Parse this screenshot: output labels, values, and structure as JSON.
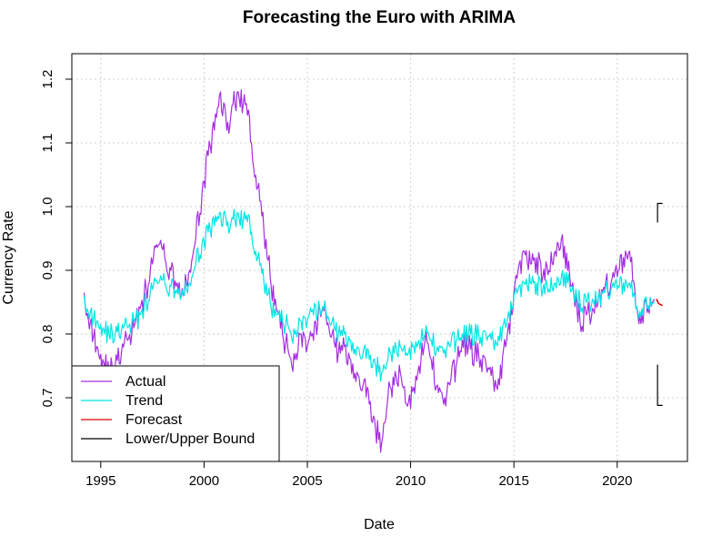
{
  "chart_data": {
    "type": "line",
    "title": "Forecasting the Euro with ARIMA",
    "xlabel": "Date",
    "ylabel": "Currency Rate",
    "xlim": [
      1993.6,
      2023.4
    ],
    "ylim": [
      0.6,
      1.24
    ],
    "x_ticks": [
      1995,
      2000,
      2005,
      2010,
      2015,
      2020
    ],
    "x_tick_labels": [
      "1995",
      "2000",
      "2005",
      "2010",
      "2015",
      "2020"
    ],
    "y_ticks": [
      0.7,
      0.8,
      0.9,
      1.0,
      1.1,
      1.2
    ],
    "y_tick_labels": [
      "0.7",
      "0.8",
      "0.9",
      "1.0",
      "1.1",
      "1.2"
    ],
    "grid": true,
    "legend_position": "bottom-left",
    "series": [
      {
        "name": "Actual",
        "color": "#a52ee0",
        "x": [
          1994.2,
          1994.5,
          1994.8,
          1995.1,
          1995.4,
          1995.7,
          1996.0,
          1996.3,
          1996.6,
          1996.9,
          1997.2,
          1997.5,
          1997.8,
          1998.1,
          1998.4,
          1998.7,
          1999.0,
          1999.3,
          1999.6,
          1999.9,
          2000.2,
          2000.5,
          2000.8,
          2001.1,
          2001.4,
          2001.7,
          2002.0,
          2002.3,
          2002.6,
          2002.9,
          2003.2,
          2003.5,
          2003.8,
          2004.1,
          2004.4,
          2004.7,
          2005.0,
          2005.3,
          2005.6,
          2005.9,
          2006.2,
          2006.5,
          2006.8,
          2007.1,
          2007.4,
          2007.7,
          2008.0,
          2008.3,
          2008.6,
          2008.9,
          2009.2,
          2009.5,
          2009.8,
          2010.1,
          2010.4,
          2010.7,
          2011.0,
          2011.3,
          2011.6,
          2011.9,
          2012.2,
          2012.5,
          2012.8,
          2013.1,
          2013.4,
          2013.7,
          2014.0,
          2014.3,
          2014.6,
          2014.9,
          2015.2,
          2015.5,
          2015.8,
          2016.1,
          2016.4,
          2016.7,
          2017.0,
          2017.3,
          2017.6,
          2017.9,
          2018.2,
          2018.5,
          2018.8,
          2019.1,
          2019.4,
          2019.7,
          2020.0,
          2020.3,
          2020.6,
          2020.9,
          2021.2,
          2021.5,
          2021.8
        ],
        "y": [
          0.865,
          0.82,
          0.78,
          0.76,
          0.74,
          0.75,
          0.77,
          0.79,
          0.81,
          0.84,
          0.87,
          0.91,
          0.94,
          0.92,
          0.9,
          0.88,
          0.86,
          0.9,
          0.95,
          1.02,
          1.08,
          1.12,
          1.18,
          1.12,
          1.16,
          1.17,
          1.16,
          1.1,
          1.03,
          0.96,
          0.89,
          0.84,
          0.8,
          0.77,
          0.76,
          0.8,
          0.78,
          0.79,
          0.84,
          0.83,
          0.8,
          0.77,
          0.78,
          0.76,
          0.74,
          0.72,
          0.69,
          0.65,
          0.63,
          0.7,
          0.72,
          0.74,
          0.69,
          0.71,
          0.75,
          0.79,
          0.76,
          0.72,
          0.69,
          0.72,
          0.75,
          0.79,
          0.78,
          0.77,
          0.76,
          0.74,
          0.73,
          0.72,
          0.78,
          0.83,
          0.9,
          0.93,
          0.91,
          0.92,
          0.89,
          0.9,
          0.93,
          0.95,
          0.9,
          0.86,
          0.82,
          0.83,
          0.84,
          0.86,
          0.87,
          0.88,
          0.89,
          0.92,
          0.93,
          0.84,
          0.83,
          0.84,
          0.855
        ]
      },
      {
        "name": "Trend",
        "color": "#00e5e5",
        "x": [
          1994.2,
          1994.5,
          1994.8,
          1995.1,
          1995.4,
          1995.7,
          1996.0,
          1996.3,
          1996.6,
          1996.9,
          1997.2,
          1997.5,
          1997.8,
          1998.1,
          1998.4,
          1998.7,
          1999.0,
          1999.3,
          1999.6,
          1999.9,
          2000.2,
          2000.5,
          2000.8,
          2001.1,
          2001.4,
          2001.7,
          2002.0,
          2002.3,
          2002.6,
          2002.9,
          2003.2,
          2003.5,
          2003.8,
          2004.1,
          2004.4,
          2004.7,
          2005.0,
          2005.3,
          2005.6,
          2005.9,
          2006.2,
          2006.5,
          2006.8,
          2007.1,
          2007.4,
          2007.7,
          2008.0,
          2008.3,
          2008.6,
          2008.9,
          2009.2,
          2009.5,
          2009.8,
          2010.1,
          2010.4,
          2010.7,
          2011.0,
          2011.3,
          2011.6,
          2011.9,
          2012.2,
          2012.5,
          2012.8,
          2013.1,
          2013.4,
          2013.7,
          2014.0,
          2014.3,
          2014.6,
          2014.9,
          2015.2,
          2015.5,
          2015.8,
          2016.1,
          2016.4,
          2016.7,
          2017.0,
          2017.3,
          2017.6,
          2017.9,
          2018.2,
          2018.5,
          2018.8,
          2019.1,
          2019.4,
          2019.7,
          2020.0,
          2020.3,
          2020.6,
          2020.9,
          2021.2,
          2021.5,
          2021.8
        ],
        "y": [
          0.86,
          0.835,
          0.82,
          0.81,
          0.8,
          0.8,
          0.805,
          0.81,
          0.82,
          0.83,
          0.85,
          0.87,
          0.88,
          0.88,
          0.875,
          0.87,
          0.86,
          0.88,
          0.91,
          0.94,
          0.96,
          0.97,
          0.99,
          0.97,
          0.98,
          0.98,
          0.98,
          0.96,
          0.92,
          0.88,
          0.85,
          0.83,
          0.82,
          0.81,
          0.8,
          0.82,
          0.82,
          0.83,
          0.84,
          0.835,
          0.82,
          0.8,
          0.8,
          0.79,
          0.78,
          0.77,
          0.76,
          0.75,
          0.74,
          0.76,
          0.77,
          0.78,
          0.77,
          0.78,
          0.79,
          0.8,
          0.79,
          0.78,
          0.77,
          0.78,
          0.79,
          0.8,
          0.8,
          0.8,
          0.795,
          0.79,
          0.79,
          0.79,
          0.81,
          0.84,
          0.87,
          0.88,
          0.88,
          0.88,
          0.87,
          0.87,
          0.88,
          0.89,
          0.88,
          0.86,
          0.85,
          0.85,
          0.855,
          0.86,
          0.865,
          0.87,
          0.87,
          0.88,
          0.88,
          0.84,
          0.84,
          0.845,
          0.85
        ]
      },
      {
        "name": "Forecast",
        "color": "#e00000",
        "x": [
          2021.9,
          2022.0,
          2022.1,
          2022.2
        ],
        "y": [
          0.855,
          0.848,
          0.846,
          0.845
        ]
      },
      {
        "name": "Lower/Upper Bound",
        "color": "#000000",
        "upper": {
          "x": [
            2021.95,
            2021.95,
            2022.2
          ],
          "y": [
            0.975,
            1.005,
            1.005
          ]
        },
        "lower": {
          "x": [
            2021.95,
            2021.95,
            2022.2
          ],
          "y": [
            0.752,
            0.688,
            0.688
          ]
        }
      }
    ]
  }
}
